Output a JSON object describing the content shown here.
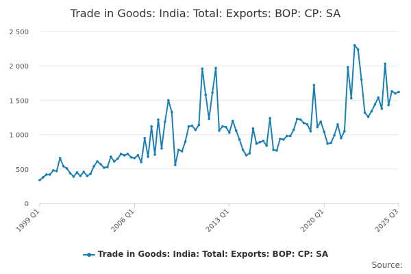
{
  "title": "Trade in Goods: India: Total: Exports: BOP: CP: SA",
  "source_label": "Source:",
  "colors": {
    "series": "#1a7fb4",
    "grid": "#e6e6e6",
    "axis": "#cccccc"
  },
  "chart_data": {
    "type": "line",
    "title": "Trade in Goods: India: Total: Exports: BOP: CP: SA",
    "xlabel": "",
    "ylabel": "",
    "ylim": [
      0,
      2500
    ],
    "y_ticks": [
      0,
      500,
      1000,
      1500,
      2000,
      2500
    ],
    "y_tick_labels": [
      "0",
      "500",
      "1 000",
      "1 500",
      "2 000",
      "2 500"
    ],
    "x_tick_labels": [
      "1999 Q1",
      "2006 Q1",
      "2013 Q1",
      "2020 Q1",
      "2025 Q3"
    ],
    "x_tick_index": [
      0,
      28,
      56,
      84,
      106
    ],
    "grid": true,
    "legend_position": "bottom",
    "series": [
      {
        "name": "Trade in Goods: India: Total: Exports: BOP: CP: SA",
        "x": [
          "1999 Q1",
          "1999 Q2",
          "1999 Q3",
          "1999 Q4",
          "2000 Q1",
          "2000 Q2",
          "2000 Q3",
          "2000 Q4",
          "2001 Q1",
          "2001 Q2",
          "2001 Q3",
          "2001 Q4",
          "2002 Q1",
          "2002 Q2",
          "2002 Q3",
          "2002 Q4",
          "2003 Q1",
          "2003 Q2",
          "2003 Q3",
          "2003 Q4",
          "2004 Q1",
          "2004 Q2",
          "2004 Q3",
          "2004 Q4",
          "2005 Q1",
          "2005 Q2",
          "2005 Q3",
          "2005 Q4",
          "2006 Q1",
          "2006 Q2",
          "2006 Q3",
          "2006 Q4",
          "2007 Q1",
          "2007 Q2",
          "2007 Q3",
          "2007 Q4",
          "2008 Q1",
          "2008 Q2",
          "2008 Q3",
          "2008 Q4",
          "2009 Q1",
          "2009 Q2",
          "2009 Q3",
          "2009 Q4",
          "2010 Q1",
          "2010 Q2",
          "2010 Q3",
          "2010 Q4",
          "2011 Q1",
          "2011 Q2",
          "2011 Q3",
          "2011 Q4",
          "2012 Q1",
          "2012 Q2",
          "2012 Q3",
          "2012 Q4",
          "2013 Q1",
          "2013 Q2",
          "2013 Q3",
          "2013 Q4",
          "2014 Q1",
          "2014 Q2",
          "2014 Q3",
          "2014 Q4",
          "2015 Q1",
          "2015 Q2",
          "2015 Q3",
          "2015 Q4",
          "2016 Q1",
          "2016 Q2",
          "2016 Q3",
          "2016 Q4",
          "2017 Q1",
          "2017 Q2",
          "2017 Q3",
          "2017 Q4",
          "2018 Q1",
          "2018 Q2",
          "2018 Q3",
          "2018 Q4",
          "2019 Q1",
          "2019 Q2",
          "2019 Q3",
          "2019 Q4",
          "2020 Q1",
          "2020 Q2",
          "2020 Q3",
          "2020 Q4",
          "2021 Q1",
          "2021 Q2",
          "2021 Q3",
          "2021 Q4",
          "2022 Q1",
          "2022 Q2",
          "2022 Q3",
          "2022 Q4",
          "2023 Q1",
          "2023 Q2",
          "2023 Q3",
          "2023 Q4",
          "2024 Q1",
          "2024 Q2",
          "2024 Q3",
          "2024 Q4",
          "2025 Q1",
          "2025 Q2",
          "2025 Q3"
        ],
        "values": [
          340,
          380,
          420,
          420,
          480,
          470,
          660,
          540,
          510,
          440,
          390,
          450,
          400,
          460,
          400,
          430,
          540,
          610,
          570,
          520,
          530,
          680,
          610,
          650,
          720,
          700,
          720,
          670,
          660,
          700,
          600,
          950,
          680,
          1120,
          710,
          1220,
          800,
          1190,
          1500,
          1330,
          560,
          780,
          760,
          900,
          1120,
          1130,
          1070,
          1140,
          1960,
          1580,
          1230,
          1610,
          1970,
          1060,
          1120,
          1110,
          1030,
          1200,
          1060,
          930,
          780,
          700,
          730,
          1090,
          870,
          890,
          910,
          840,
          1240,
          780,
          770,
          940,
          930,
          980,
          980,
          1070,
          1230,
          1220,
          1170,
          1150,
          1050,
          1720,
          1110,
          1190,
          1040,
          870,
          880,
          990,
          1150,
          950,
          1050,
          1980,
          1530,
          2300,
          2240,
          1800,
          1320,
          1260,
          1340,
          1440,
          1540,
          1380,
          2030,
          1430,
          1630,
          1600,
          1620
        ]
      }
    ]
  }
}
